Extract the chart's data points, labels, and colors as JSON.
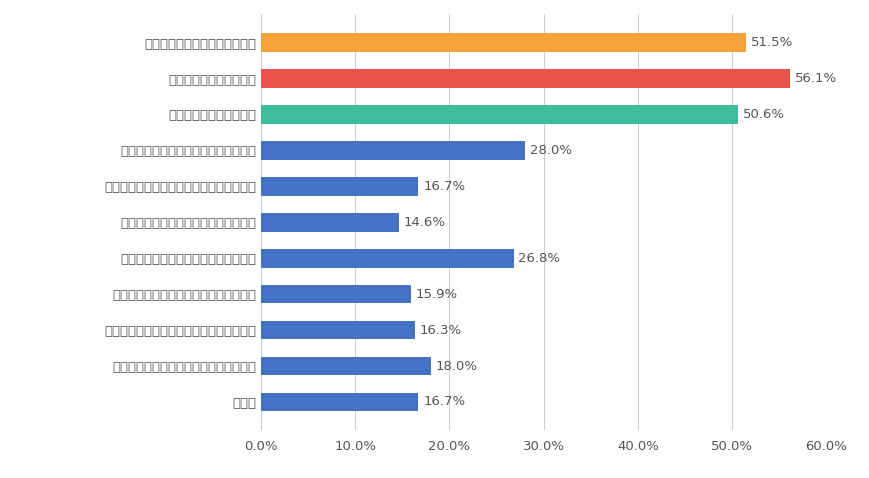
{
  "categories": [
    "その他",
    "核兵器および原子力発電を廃絶すること",
    "病気や感染症からすべての人々を守ること",
    "気候変動や自然災害への対策を行うこと",
    "環境や生態系の破壊を食い止めること",
    "経済格差や雇用の問題をなくすること",
    "各国の政情が安定し、国際協力が進むこと",
    "質の高い教育をみんなに提供すること",
    "貧困や飢餓をなくすこと",
    "戦争や紛争をなくすこと",
    "人権の抑圧や差別をなくすこと"
  ],
  "values": [
    16.7,
    18.0,
    16.3,
    15.9,
    26.8,
    14.6,
    16.7,
    28.0,
    50.6,
    56.1,
    51.5
  ],
  "colors": [
    "#4472C4",
    "#4472C4",
    "#4472C4",
    "#4472C4",
    "#4472C4",
    "#4472C4",
    "#4472C4",
    "#4472C4",
    "#3DBD9E",
    "#E8534A",
    "#F5A23A"
  ],
  "xlim": [
    0,
    60
  ],
  "xticks": [
    0,
    10,
    20,
    30,
    40,
    50,
    60
  ],
  "background_color": "#FFFFFF",
  "bar_height": 0.52,
  "label_fontsize": 9.5,
  "tick_fontsize": 9.5,
  "value_fontsize": 9.5,
  "text_color": "#555555",
  "gridline_color": "#CCCCCC"
}
